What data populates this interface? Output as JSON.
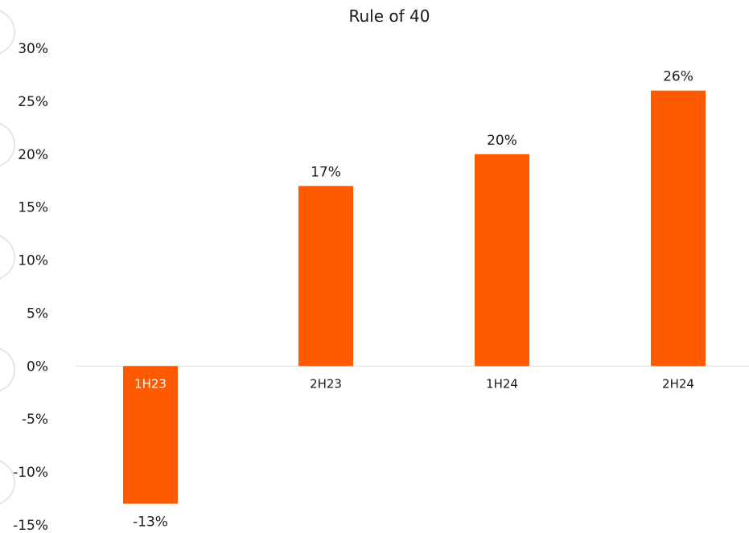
{
  "chart_data": {
    "type": "bar",
    "title": "Rule of 40",
    "categories": [
      "1H23",
      "2H23",
      "1H24",
      "2H24"
    ],
    "values": [
      -13,
      17,
      20,
      26
    ],
    "value_labels": [
      "-13%",
      "17%",
      "20%",
      "26%"
    ],
    "y_ticks": [
      30,
      25,
      20,
      15,
      10,
      5,
      0,
      -5,
      -10,
      -15
    ],
    "y_tick_labels": [
      "30%",
      "25%",
      "20%",
      "15%",
      "10%",
      "5%",
      "0%",
      "-5%",
      "-10%",
      "-15%"
    ],
    "ylim": [
      -15,
      30
    ],
    "grid": false,
    "legend": "none",
    "bar_color": "#FF5A00"
  }
}
